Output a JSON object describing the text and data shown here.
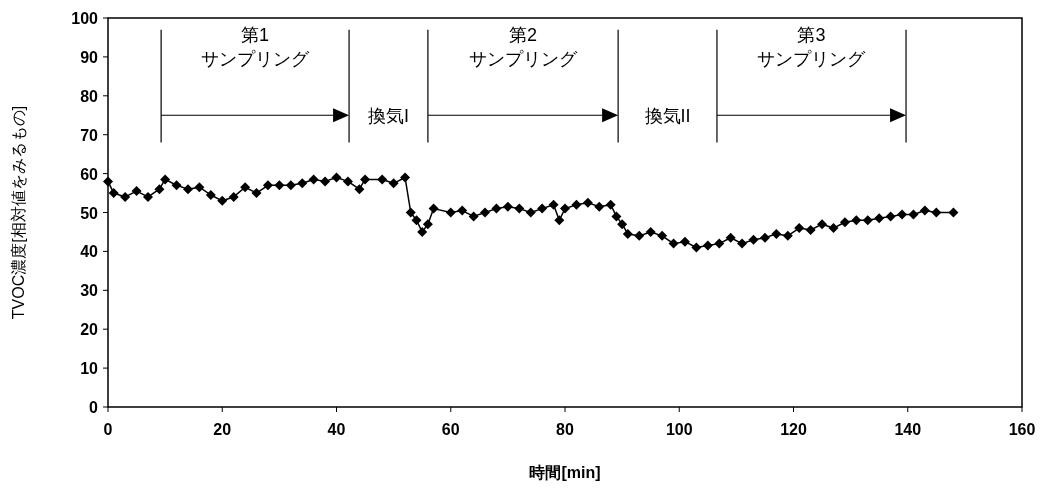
{
  "chart_data": {
    "type": "line",
    "xlabel": "時間[min]",
    "ylabel": "TVOC濃度[相対値をみるもの]",
    "xlim": [
      0,
      160
    ],
    "xticks": [
      0,
      20,
      40,
      60,
      80,
      100,
      120,
      140,
      160
    ],
    "ylim": [
      0,
      100
    ],
    "yticks": [
      0,
      10,
      20,
      30,
      40,
      50,
      60,
      70,
      80,
      90,
      100
    ],
    "marker": "diamond",
    "line_style": "solid",
    "x": [
      0,
      1,
      3,
      5,
      7,
      9,
      10,
      12,
      14,
      16,
      18,
      20,
      22,
      24,
      26,
      28,
      30,
      32,
      34,
      36,
      38,
      40,
      42,
      44,
      45,
      48,
      50,
      52,
      53,
      54,
      55,
      56,
      57,
      60,
      62,
      64,
      66,
      68,
      70,
      72,
      74,
      76,
      78,
      79,
      80,
      82,
      84,
      86,
      88,
      89,
      90,
      91,
      93,
      95,
      97,
      99,
      101,
      103,
      105,
      107,
      109,
      111,
      113,
      115,
      117,
      119,
      121,
      123,
      125,
      127,
      129,
      131,
      133,
      135,
      137,
      139,
      141,
      143,
      145,
      148
    ],
    "series": [
      {
        "color": "#000000",
        "values": [
          58,
          55,
          54,
          55.5,
          54,
          56,
          58.5,
          57,
          56,
          56.5,
          54.5,
          53,
          54,
          56.5,
          55,
          57,
          57,
          57,
          57.5,
          58.5,
          58,
          59,
          58,
          56,
          58.5,
          58.5,
          57.5,
          59,
          50,
          48,
          45,
          47,
          51,
          50,
          50.5,
          49,
          50,
          51,
          51.5,
          51,
          50,
          51,
          52,
          48,
          51,
          52,
          52.5,
          51.5,
          52,
          49,
          47,
          44.5,
          44,
          45,
          44,
          42,
          42.5,
          41,
          41.5,
          42,
          43.5,
          42,
          43,
          43.5,
          44.5,
          44,
          46,
          45.5,
          47,
          46,
          47.5,
          48,
          48,
          48.5,
          49,
          49.5,
          49.5,
          50.5,
          50,
          50
        ]
      }
    ],
    "ref_lines": [
      {
        "axis": "x",
        "value": 9.3
      },
      {
        "axis": "x",
        "value": 42.2
      },
      {
        "axis": "x",
        "value": 56
      },
      {
        "axis": "x",
        "value": 89.3
      },
      {
        "axis": "x",
        "value": 106.6
      },
      {
        "axis": "x",
        "value": 139.7
      }
    ],
    "annotations": [
      "第1\nサンプリング",
      "換気I",
      "第2\nサンプリング",
      "換気II",
      "第3\nサンプリング"
    ]
  }
}
